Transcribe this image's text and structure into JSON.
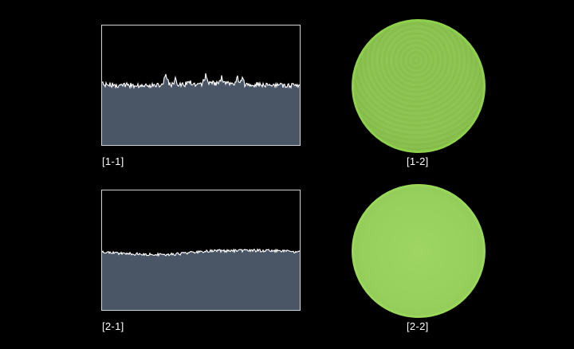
{
  "figure": {
    "panels": [
      {
        "id": "1-1",
        "label": "[1-1]",
        "kind": "surface-profile",
        "surface": "rough",
        "fill_color": "#4a5566",
        "line_color": "#ffffff"
      },
      {
        "id": "1-2",
        "label": "[1-2]",
        "kind": "dish-photo",
        "color": "#8cc450",
        "rim_color": "#8fd14a"
      },
      {
        "id": "2-1",
        "label": "[2-1]",
        "kind": "surface-profile",
        "surface": "smooth",
        "fill_color": "#4a5566",
        "line_color": "#ffffff"
      },
      {
        "id": "2-2",
        "label": "[2-2]",
        "kind": "dish-photo",
        "color": "#97d05d",
        "rim_color": "#9ad85a"
      }
    ],
    "background": "#000000",
    "frame_color": "#cfd3d8"
  }
}
